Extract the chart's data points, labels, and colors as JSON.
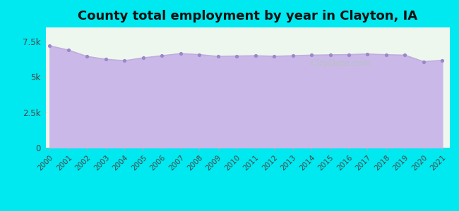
{
  "title": "County total employment by year in Clayton, IA",
  "years": [
    2000,
    2001,
    2002,
    2003,
    2004,
    2005,
    2006,
    2007,
    2008,
    2009,
    2010,
    2011,
    2012,
    2013,
    2014,
    2015,
    2016,
    2017,
    2018,
    2019,
    2020,
    2021
  ],
  "values": [
    7200,
    6900,
    6450,
    6250,
    6150,
    6350,
    6500,
    6650,
    6580,
    6450,
    6480,
    6500,
    6460,
    6500,
    6540,
    6560,
    6580,
    6620,
    6570,
    6540,
    6080,
    6180
  ],
  "ylim": [
    0,
    8500
  ],
  "yticks": [
    0,
    2500,
    5000,
    7500
  ],
  "ytick_labels": [
    "0",
    "2.5k",
    "5k",
    "7.5k"
  ],
  "line_color": "#c0aedd",
  "fill_color": "#c9b8e8",
  "fill_alpha": 1.0,
  "marker_color": "#9b86c8",
  "bg_outer": "#00e8f0",
  "bg_plot": "#eef7ee",
  "title_fontsize": 13,
  "title_color": "#111111",
  "watermark": "CityData.com"
}
